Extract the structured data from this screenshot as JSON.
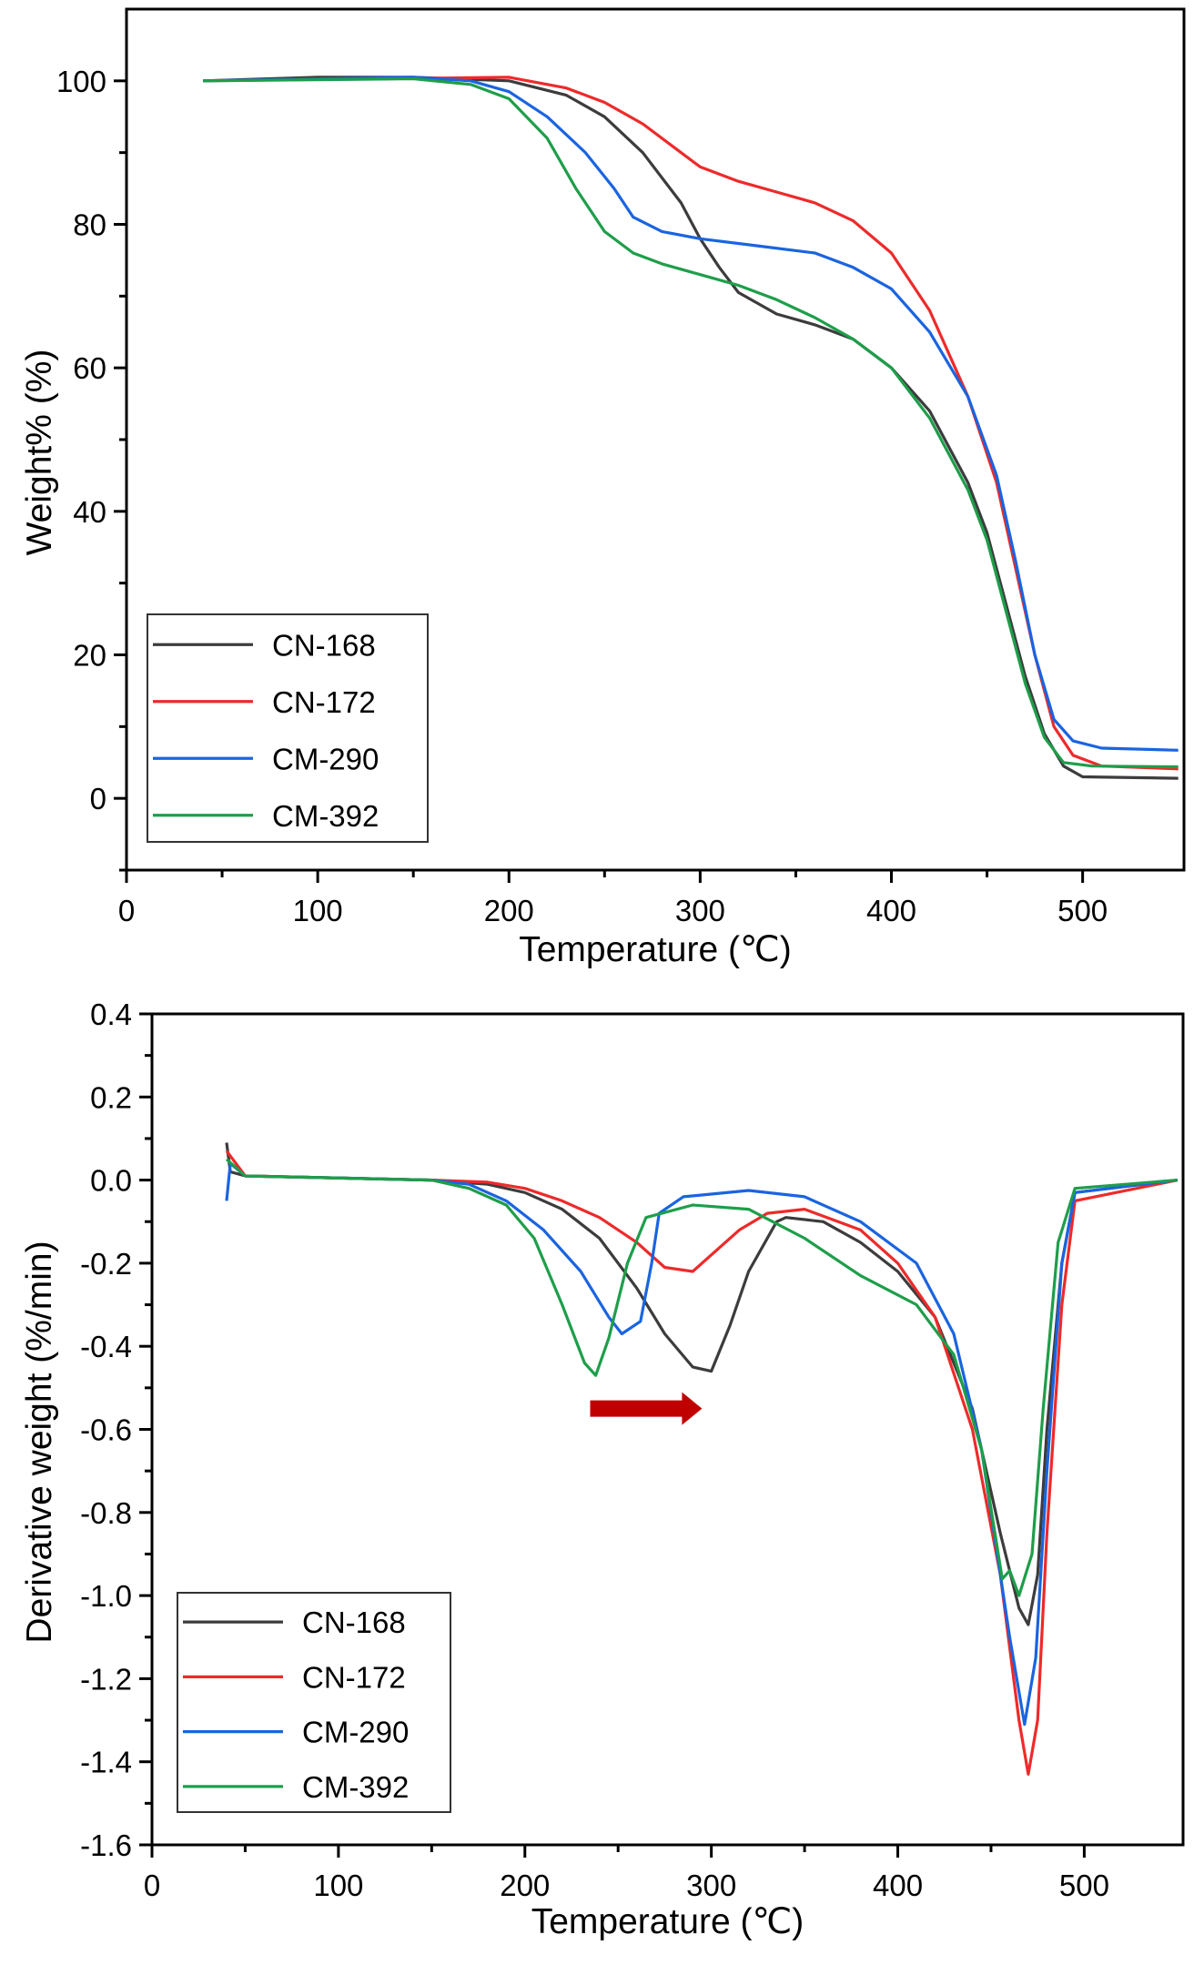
{
  "chart_data": [
    {
      "type": "line",
      "title": "",
      "xlabel": "Temperature (℃)",
      "ylabel": "Weight% (%)",
      "xlim": [
        0,
        553
      ],
      "ylim": [
        -10,
        110
      ],
      "xticks": [
        0,
        100,
        200,
        300,
        400,
        500
      ],
      "xticks_minor": [
        50,
        150,
        250,
        350,
        450
      ],
      "yticks": [
        0,
        20,
        40,
        60,
        80,
        100
      ],
      "yticks_minor": [
        -10,
        10,
        30,
        50,
        70,
        90
      ],
      "grid": false,
      "legend_position": "bottom-left",
      "series": [
        {
          "name": "CN-168",
          "color": "#3c3c3c",
          "x": [
            40,
            100,
            150,
            200,
            230,
            250,
            270,
            290,
            300,
            310,
            320,
            340,
            360,
            380,
            400,
            420,
            440,
            450,
            460,
            470,
            480,
            490,
            500,
            550
          ],
          "y": [
            100,
            100.5,
            100.5,
            100,
            98,
            95,
            90,
            83,
            78,
            74,
            70.5,
            67.5,
            66,
            64,
            60,
            54,
            44,
            37,
            27,
            17,
            9,
            4.5,
            3,
            2.8
          ]
        },
        {
          "name": "CN-172",
          "color": "#ee2a2a",
          "x": [
            40,
            200,
            230,
            250,
            270,
            290,
            300,
            320,
            340,
            360,
            380,
            400,
            420,
            440,
            455,
            465,
            475,
            485,
            495,
            510,
            550
          ],
          "y": [
            100,
            100.5,
            99,
            97,
            94,
            90,
            88,
            86,
            84.5,
            83,
            80.5,
            76,
            68,
            56,
            44,
            32,
            20,
            10,
            6,
            4.5,
            4.1
          ]
        },
        {
          "name": "CM-290",
          "color": "#1a64e0",
          "x": [
            40,
            150,
            180,
            200,
            220,
            240,
            255,
            265,
            280,
            300,
            330,
            360,
            380,
            400,
            420,
            440,
            455,
            465,
            475,
            485,
            495,
            510,
            550
          ],
          "y": [
            100,
            100.5,
            100,
            98.5,
            95,
            90,
            85,
            81,
            79,
            78,
            77,
            76,
            74,
            71,
            65,
            56,
            45,
            33,
            20,
            11,
            8,
            7,
            6.7
          ]
        },
        {
          "name": "CM-392",
          "color": "#1e9e4a",
          "x": [
            40,
            150,
            180,
            200,
            220,
            235,
            250,
            265,
            280,
            300,
            320,
            340,
            360,
            380,
            400,
            420,
            440,
            450,
            460,
            470,
            480,
            490,
            505,
            550
          ],
          "y": [
            100,
            100.3,
            99.5,
            97.5,
            92,
            85,
            79,
            76,
            74.5,
            73,
            71.5,
            69.5,
            67,
            64,
            60,
            53,
            43,
            36,
            26,
            16,
            8.5,
            5,
            4.5,
            4.4
          ]
        }
      ]
    },
    {
      "type": "line",
      "title": "",
      "xlabel": "Temperature (℃)",
      "ylabel": "Derivative weight (%/min)",
      "xlim": [
        0,
        553
      ],
      "ylim": [
        -1.6,
        0.4
      ],
      "xticks": [
        0,
        100,
        200,
        300,
        400,
        500
      ],
      "xticks_minor": [
        50,
        150,
        250,
        350,
        450
      ],
      "yticks": [
        -1.6,
        -1.4,
        -1.2,
        -1.0,
        -0.8,
        -0.6,
        -0.4,
        -0.2,
        0.0,
        0.2,
        0.4
      ],
      "ytick_labels": [
        "-1.6",
        "-1.4",
        "-1.2",
        "-1.0",
        "-0.8",
        "-0.6",
        "-0.4",
        "-0.2",
        "0.0",
        "0.2",
        "0.4"
      ],
      "yticks_minor": [
        -1.5,
        -1.3,
        -1.1,
        -0.9,
        -0.7,
        -0.5,
        -0.3,
        -0.1,
        0.1,
        0.3
      ],
      "grid": false,
      "legend_position": "bottom-left",
      "annotations": [
        {
          "type": "arrow",
          "direction": "right",
          "from_x": 235,
          "to_x": 295,
          "y": -0.55,
          "color": "#c00000"
        }
      ],
      "series": [
        {
          "name": "CN-168",
          "color": "#3c3c3c",
          "x": [
            40,
            42,
            50,
            150,
            180,
            200,
            220,
            240,
            260,
            275,
            290,
            300,
            310,
            320,
            335,
            340,
            360,
            380,
            400,
            420,
            440,
            455,
            465,
            470,
            475,
            480,
            488,
            495,
            550
          ],
          "y": [
            0.09,
            0.02,
            0.01,
            0,
            -0.01,
            -0.03,
            -0.07,
            -0.14,
            -0.26,
            -0.37,
            -0.45,
            -0.46,
            -0.35,
            -0.22,
            -0.1,
            -0.09,
            -0.1,
            -0.15,
            -0.22,
            -0.33,
            -0.55,
            -0.85,
            -1.03,
            -1.07,
            -0.95,
            -0.6,
            -0.2,
            -0.03,
            0
          ]
        },
        {
          "name": "CN-172",
          "color": "#ee2a2a",
          "x": [
            40,
            50,
            150,
            180,
            200,
            220,
            240,
            260,
            275,
            290,
            300,
            315,
            330,
            350,
            380,
            400,
            420,
            440,
            455,
            465,
            470,
            475,
            480,
            488,
            495,
            550
          ],
          "y": [
            0.07,
            0.01,
            0,
            -0.005,
            -0.02,
            -0.05,
            -0.09,
            -0.15,
            -0.21,
            -0.22,
            -0.18,
            -0.12,
            -0.08,
            -0.07,
            -0.12,
            -0.2,
            -0.33,
            -0.6,
            -0.95,
            -1.3,
            -1.43,
            -1.3,
            -0.85,
            -0.3,
            -0.05,
            0
          ]
        },
        {
          "name": "CM-290",
          "color": "#1a64e0",
          "x": [
            40,
            42,
            50,
            150,
            170,
            190,
            210,
            230,
            245,
            252,
            262,
            268,
            272,
            285,
            320,
            350,
            380,
            410,
            430,
            445,
            460,
            468,
            474,
            480,
            488,
            495,
            550
          ],
          "y": [
            -0.05,
            0.04,
            0.01,
            0,
            -0.01,
            -0.05,
            -0.12,
            -0.22,
            -0.33,
            -0.37,
            -0.34,
            -0.2,
            -0.08,
            -0.04,
            -0.025,
            -0.04,
            -0.1,
            -0.2,
            -0.37,
            -0.65,
            -1.1,
            -1.31,
            -1.15,
            -0.7,
            -0.2,
            -0.03,
            0
          ]
        },
        {
          "name": "CM-392",
          "color": "#1e9e4a",
          "x": [
            40,
            50,
            150,
            170,
            190,
            205,
            220,
            232,
            238,
            245,
            255,
            265,
            290,
            320,
            350,
            380,
            410,
            430,
            445,
            456,
            460,
            465,
            472,
            478,
            486,
            495,
            550
          ],
          "y": [
            0.05,
            0.01,
            0,
            -0.02,
            -0.06,
            -0.14,
            -0.3,
            -0.44,
            -0.47,
            -0.38,
            -0.2,
            -0.09,
            -0.06,
            -0.07,
            -0.14,
            -0.23,
            -0.3,
            -0.42,
            -0.65,
            -0.96,
            -0.94,
            -1.0,
            -0.9,
            -0.55,
            -0.15,
            -0.02,
            0
          ]
        }
      ]
    }
  ]
}
